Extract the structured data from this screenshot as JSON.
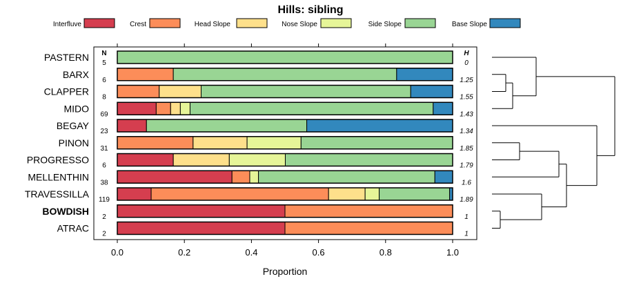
{
  "chart_data": {
    "type": "bar",
    "orientation": "horizontal",
    "stacked": true,
    "title": "Hills: sibling",
    "xlabel": "Proportion",
    "ylabel": "",
    "xlim": [
      0,
      1
    ],
    "x_ticks": [
      "0.0",
      "0.2",
      "0.4",
      "0.6",
      "0.8",
      "1.0"
    ],
    "x_tick_values": [
      0,
      0.2,
      0.4,
      0.6,
      0.8,
      1.0
    ],
    "n_header": "N",
    "h_header": "H",
    "legend": [
      {
        "name": "Interfluve",
        "color": "#d53e4f"
      },
      {
        "name": "Crest",
        "color": "#fc8d59"
      },
      {
        "name": "Head Slope",
        "color": "#fee08b"
      },
      {
        "name": "Nose Slope",
        "color": "#e6f598"
      },
      {
        "name": "Side Slope",
        "color": "#99d594"
      },
      {
        "name": "Base Slope",
        "color": "#3288bd"
      }
    ],
    "legend_position": "top",
    "categories": [
      "PASTERN",
      "BARX",
      "CLAPPER",
      "MIDO",
      "BEGAY",
      "PINON",
      "PROGRESSO",
      "MELLENTHIN",
      "TRAVESSILLA",
      "BOWDISH",
      "ATRAC"
    ],
    "highlighted": "BOWDISH",
    "n": [
      "5",
      "6",
      "8",
      "69",
      "23",
      "31",
      "6",
      "38",
      "119",
      "2",
      "2"
    ],
    "h": [
      "0",
      "1.25",
      "1.55",
      "1.43",
      "1.34",
      "1.85",
      "1.79",
      "1.6",
      "1.89",
      "1",
      "1"
    ],
    "series": [
      {
        "name": "Interfluve",
        "values": [
          0,
          0,
          0,
          0.116,
          0.087,
          0,
          0.167,
          0.342,
          0.101,
          0.5,
          0.5
        ]
      },
      {
        "name": "Crest",
        "values": [
          0,
          0.167,
          0.125,
          0.043,
          0,
          0.226,
          0,
          0.053,
          0.529,
          0.5,
          0.5
        ]
      },
      {
        "name": "Head Slope",
        "values": [
          0,
          0,
          0.125,
          0.029,
          0,
          0.161,
          0.167,
          0,
          0.109,
          0,
          0
        ]
      },
      {
        "name": "Nose Slope",
        "values": [
          0,
          0,
          0,
          0.029,
          0,
          0.161,
          0.167,
          0.026,
          0.042,
          0,
          0
        ]
      },
      {
        "name": "Side Slope",
        "values": [
          1,
          0.666,
          0.625,
          0.725,
          0.478,
          0.452,
          0.499,
          0.526,
          0.21,
          0,
          0
        ]
      },
      {
        "name": "Base Slope",
        "values": [
          0,
          0.167,
          0.125,
          0.058,
          0.435,
          0,
          0,
          0.053,
          0.009,
          0,
          0
        ]
      }
    ],
    "dendrogram": {
      "description": "hierarchical clustering of categories",
      "merges": [
        {
          "left": "BARX",
          "right": "CLAPPER"
        },
        {
          "left": "BARX-CLAPPER",
          "right": "MIDO"
        },
        {
          "left": "PASTERN",
          "right": "BARX-CLAPPER-MIDO"
        },
        {
          "left": "PINON",
          "right": "PROGRESSO"
        },
        {
          "left": "PINON-PROGRESSO",
          "right": "MELLENTHIN"
        },
        {
          "left": "BOWDISH",
          "right": "ATRAC"
        },
        {
          "left": "TRAVESSILLA",
          "right": "BOWDISH-ATRAC"
        },
        {
          "left": "PINON-PROGRESSO-MELLENTHIN",
          "right": "TRAVESSILLA-BOWDISH-ATRAC"
        },
        {
          "left": "BEGAY",
          "right": "PINON...ATRAC"
        },
        {
          "left": "PASTERN...MIDO",
          "right": "BEGAY...ATRAC"
        }
      ]
    }
  }
}
